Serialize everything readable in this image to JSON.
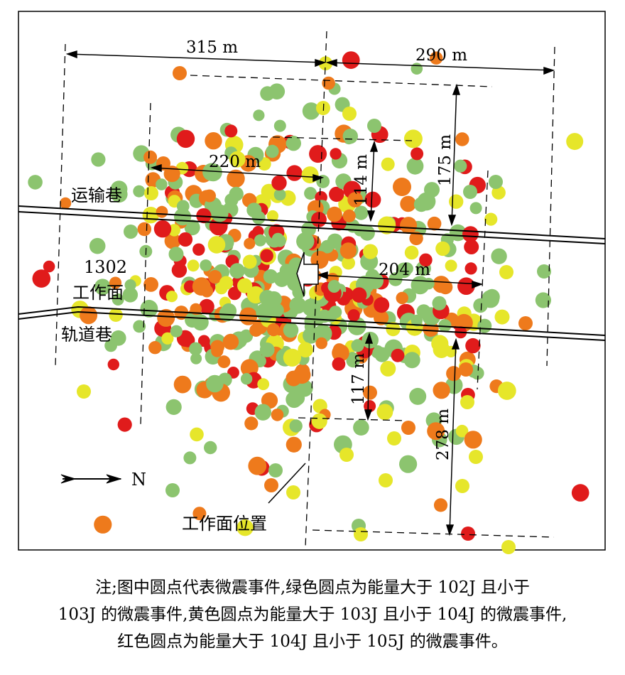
{
  "diagram": {
    "dimensions": {
      "d315": "315 m",
      "d290": "290 m",
      "d220": "220 m",
      "d175": "175 m",
      "d114": "114 m",
      "d204": "204 m",
      "d117": "117 m",
      "d278": "278 m"
    },
    "labels": {
      "transport_roadway": "运输巷",
      "face_number": "1302",
      "face_name": "工作面",
      "track_roadway": "轨道巷",
      "face_position": "工作面位置",
      "north": "N"
    },
    "colors": {
      "green": "#8cc46f",
      "yellow": "#e6e62a",
      "orange": "#ee7a1c",
      "red": "#e01b1b"
    }
  },
  "caption": {
    "line1": "注;图中圆点代表微震事件,绿色圆点为能量大于 102J 且小于",
    "line2": "103J 的微震事件,黄色圆点为能量大于 103J 且小于 104J 的微震事件,",
    "line3": "红色圆点为能量大于 104J 且小于 105J 的微震事件。"
  }
}
